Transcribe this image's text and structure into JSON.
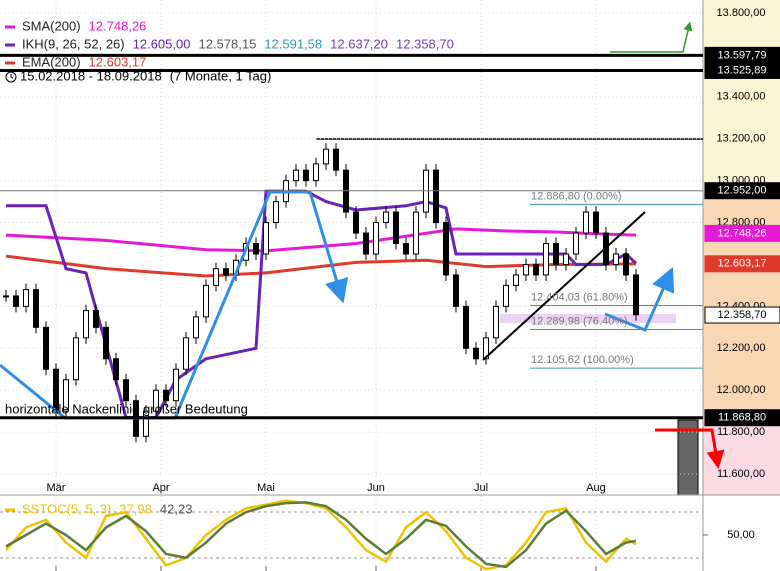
{
  "chart_data": {
    "type": "candlestick",
    "date_range": "15.02.2018 - 18.09.2018",
    "period": "(7 Monate, 1 Tag)",
    "annotation": "horizontale Nackenlinie großer Bedeutung",
    "x": [
      0,
      2,
      4,
      6,
      8,
      10,
      12,
      14,
      16,
      18,
      20,
      22,
      24,
      26,
      28,
      30,
      32,
      34,
      36,
      38,
      40,
      42,
      44,
      46,
      48,
      50,
      52,
      54,
      56,
      58,
      60,
      62,
      64,
      66,
      68,
      70,
      72,
      74,
      76,
      78,
      80,
      82,
      84,
      86,
      88,
      90,
      92,
      94,
      96,
      98,
      100,
      102,
      104,
      106,
      108,
      110,
      112,
      114,
      116,
      118,
      120,
      122,
      124,
      126
    ],
    "values": [
      12450,
      12400,
      12480,
      12300,
      12100,
      11900,
      12050,
      12250,
      12380,
      12300,
      12150,
      12050,
      11950,
      11780,
      11900,
      12000,
      11950,
      12100,
      12250,
      12350,
      12500,
      12580,
      12550,
      12620,
      12700,
      12650,
      12800,
      12900,
      13000,
      13050,
      13000,
      13080,
      13150,
      13050,
      12850,
      12750,
      12650,
      12800,
      12850,
      12700,
      12650,
      12850,
      13050,
      12800,
      12550,
      12400,
      12200,
      12150,
      12250,
      12400,
      12500,
      12550,
      12600,
      12550,
      12700,
      12600,
      12650,
      12750,
      12850,
      12750,
      12600,
      12650,
      12550,
      12360
    ],
    "xlim": [
      -1.2,
      139.4
    ],
    "xticks": [
      {
        "value": 10,
        "label": "Mär"
      },
      {
        "value": 31,
        "label": "Apr"
      },
      {
        "value": 52,
        "label": "Mai"
      },
      {
        "value": 74,
        "label": "Jun"
      },
      {
        "value": 95,
        "label": "Jul"
      },
      {
        "value": 118,
        "label": "Aug"
      }
    ],
    "ylim": [
      11500,
      13862
    ],
    "yticks": [
      {
        "value": 13800,
        "label": "13.800,00"
      },
      {
        "value": 13400,
        "label": "13.400,00"
      },
      {
        "value": 13200,
        "label": "13.200,00"
      },
      {
        "value": 13000,
        "label": "13.000,00"
      },
      {
        "value": 12800,
        "label": "12.800,00"
      },
      {
        "value": 12400,
        "label": "12.400,00"
      },
      {
        "value": 12200,
        "label": "12.200,00"
      },
      {
        "value": 12000,
        "label": "12.000,00"
      },
      {
        "value": 11800,
        "label": "11.800,00"
      },
      {
        "value": 11600,
        "label": "11.600,00"
      }
    ],
    "grid": true,
    "overlays": [
      {
        "color": "#e619d6",
        "x": [
          0,
          20,
          40,
          52,
          70,
          90,
          100,
          110,
          120,
          126
        ],
        "values": [
          12740,
          12715,
          12670,
          12665,
          12700,
          12770,
          12760,
          12755,
          12745,
          12740
        ]
      },
      {
        "color": "#e03a2a",
        "x": [
          0,
          20,
          40,
          52,
          70,
          84,
          96,
          110,
          126
        ],
        "values": [
          12640,
          12580,
          12545,
          12560,
          12610,
          12620,
          12590,
          12600,
          12603
        ]
      },
      {
        "color": "#6a22b8",
        "x": [
          0,
          8,
          12,
          16,
          24,
          30,
          34,
          40,
          50,
          52,
          60,
          64,
          70,
          80,
          84,
          88,
          90,
          100,
          108,
          112,
          114,
          120,
          124,
          126
        ],
        "values": [
          12880,
          12880,
          12580,
          12560,
          11870,
          11870,
          12050,
          12150,
          12200,
          12950,
          12950,
          12900,
          12860,
          12880,
          12900,
          12870,
          12650,
          12650,
          12650,
          12650,
          12600,
          12600,
          12650,
          12605
        ]
      }
    ],
    "legend": [
      {
        "name": "SMA(200)",
        "color": "#e619d6",
        "values": [
          {
            "value": 12748.26,
            "label": "12.748,26",
            "color": "#e619d6"
          }
        ]
      },
      {
        "name": "IKH(9, 26, 52, 26)",
        "color": "#6a22b8",
        "values": [
          {
            "value": 12605.0,
            "label": "12.605,00",
            "color": "#6a22b8"
          },
          {
            "value": 12578.15,
            "label": "12.578,15",
            "color": "#555555"
          },
          {
            "value": 12591.58,
            "label": "12.591,58",
            "color": "#2f9bb0"
          },
          {
            "value": 12637.2,
            "label": "12.637,20",
            "color": "#7a3ab0"
          },
          {
            "value": 12358.7,
            "label": "12.358,70",
            "color": "#7a3ab0"
          }
        ]
      },
      {
        "name": "EMA(200)",
        "color": "#e03a2a",
        "values": [
          {
            "value": 12603.17,
            "label": "12.603,17",
            "color": "#e03a2a"
          }
        ]
      }
    ],
    "price_markers": [
      {
        "value": 13597.79,
        "label": "13.597,79",
        "color": "#000000",
        "line": "thick"
      },
      {
        "value": 13525.89,
        "label": "13.525,89",
        "color": "#000000",
        "line": "thick"
      },
      {
        "value": 12952.0,
        "label": "12.952,00",
        "color": "#000000",
        "line": "thin"
      },
      {
        "value": 12748.26,
        "label": "12.748,26",
        "color": "#e619d6",
        "line": "none"
      },
      {
        "value": 12603.17,
        "label": "12.603,17",
        "color": "#e03a2a",
        "line": "none"
      },
      {
        "value": 12358.7,
        "label": "12.358,70",
        "color": "#ffffff",
        "line": "none"
      },
      {
        "value": 11868.8,
        "label": "11.868,80",
        "color": "#000000",
        "line": "thick"
      }
    ],
    "fib_levels": [
      {
        "value": 12886.8,
        "label": "12.886,80 (0.00%)"
      },
      {
        "value": 12404.03,
        "label": "12.404,03 (61.80%)"
      },
      {
        "value": 12289.98,
        "label": "12.289,98 (76.40%)"
      },
      {
        "value": 12105.62,
        "label": "12.105,62 (100.00%)"
      }
    ],
    "stochastic": {
      "name": "SSTOC(5, 5, 3)",
      "ylim": [
        2.6,
        100
      ],
      "yticks": [
        {
          "value": 50,
          "label": "50,00"
        }
      ],
      "x": [
        0,
        4,
        8,
        12,
        16,
        20,
        24,
        28,
        32,
        36,
        40,
        44,
        48,
        52,
        56,
        60,
        64,
        68,
        72,
        76,
        80,
        84,
        88,
        92,
        96,
        100,
        104,
        108,
        112,
        116,
        120,
        124,
        126
      ],
      "series": [
        {
          "color": "#f2c200",
          "value_label": "37,98",
          "values": [
            30,
            60,
            70,
            40,
            20,
            75,
            80,
            45,
            10,
            20,
            50,
            70,
            85,
            90,
            95,
            92,
            85,
            60,
            30,
            15,
            60,
            80,
            55,
            20,
            5,
            10,
            40,
            80,
            85,
            40,
            15,
            45,
            37.98
          ]
        },
        {
          "color": "#5b7d3a",
          "value_label": "42,23",
          "values": [
            35,
            50,
            65,
            50,
            30,
            60,
            75,
            55,
            25,
            20,
            40,
            65,
            80,
            88,
            92,
            93,
            88,
            70,
            45,
            25,
            45,
            70,
            62,
            35,
            12,
            8,
            30,
            65,
            82,
            55,
            25,
            40,
            42.23
          ]
        }
      ]
    }
  }
}
